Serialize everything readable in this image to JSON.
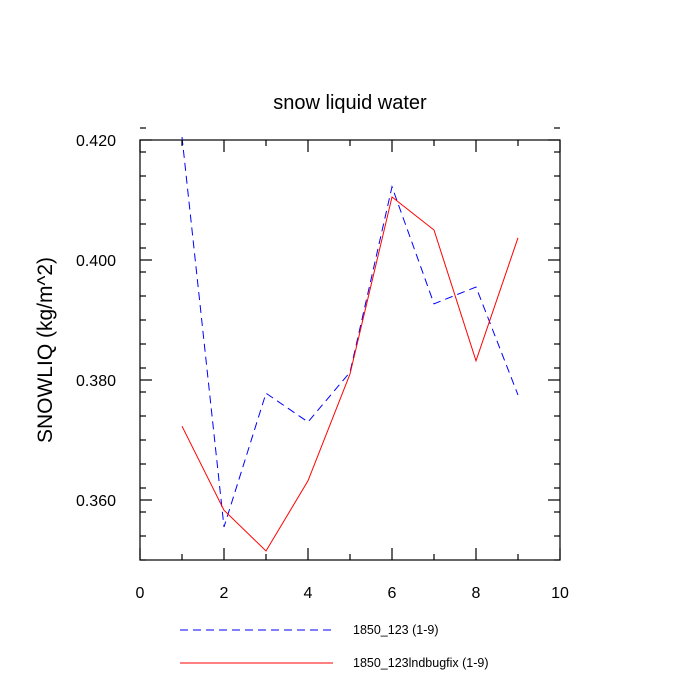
{
  "chart_data": {
    "type": "line",
    "title": "snow liquid water",
    "xlabel": "",
    "ylabel": "SNOWLIQ  (kg/m^2)",
    "xlim": [
      0,
      10
    ],
    "ylim": [
      0.35,
      0.42
    ],
    "xticks": [
      0,
      2,
      4,
      6,
      8,
      10
    ],
    "xtick_labels": [
      "0",
      "2",
      "4",
      "6",
      "8",
      "10"
    ],
    "yticks": [
      0.36,
      0.38,
      0.4,
      0.42
    ],
    "ytick_labels": [
      "0.360",
      "0.380",
      "0.400",
      "0.420"
    ],
    "x_minor_step": 1,
    "y_minor_step": 0.004,
    "grid": false,
    "legend_position": "bottom",
    "series": [
      {
        "name": "1850_123 (1-9)",
        "color": "#0000ff",
        "style": "dashed",
        "x": [
          1,
          2,
          3,
          4,
          5,
          6,
          7,
          8,
          9
        ],
        "values": [
          0.4205,
          0.3555,
          0.3778,
          0.373,
          0.3813,
          0.4122,
          0.3927,
          0.3955,
          0.3775
        ]
      },
      {
        "name": "1850_123lndbugfix (1-9)",
        "color": "#ff0000",
        "style": "solid",
        "x": [
          1,
          2,
          3,
          4,
          5,
          6,
          7,
          8,
          9
        ],
        "values": [
          0.3723,
          0.3583,
          0.3515,
          0.3632,
          0.381,
          0.4105,
          0.405,
          0.3832,
          0.4037
        ]
      }
    ]
  }
}
